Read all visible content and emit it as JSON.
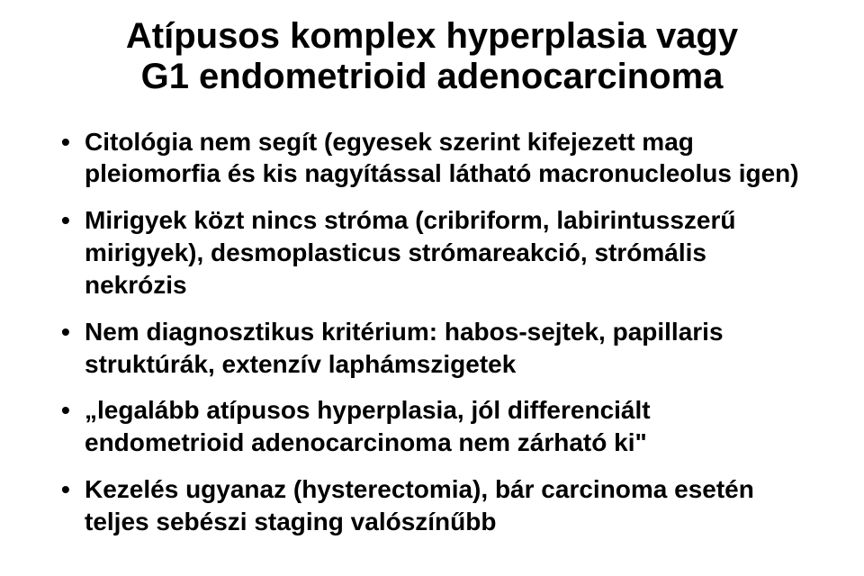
{
  "title": {
    "line1": "Atípusos komplex hyperplasia vagy",
    "line2": "G1 endometrioid adenocarcinoma",
    "fontsize": 40,
    "color": "#000000"
  },
  "bullets": {
    "fontsize": 28,
    "color": "#000000",
    "items": [
      "Citológia nem segít (egyesek szerint kifejezett mag pleiomorfia és kis nagyítással látható macronucleolus igen)",
      "Mirigyek közt nincs stróma (cribriform, labirintusszerű mirigyek), desmoplasticus strómareakció, strómális nekrózis",
      "Nem diagnosztikus kritérium: habos-sejtek, papillaris struktúrák, extenzív laphámszigetek",
      "„legalább atípusos hyperplasia, jól differenciált endometrioid adenocarcinoma nem zárható ki\"",
      "Kezelés ugyanaz (hysterectomia), bár carcinoma esetén teljes sebészi staging valószínűbb"
    ]
  },
  "background_color": "#ffffff"
}
